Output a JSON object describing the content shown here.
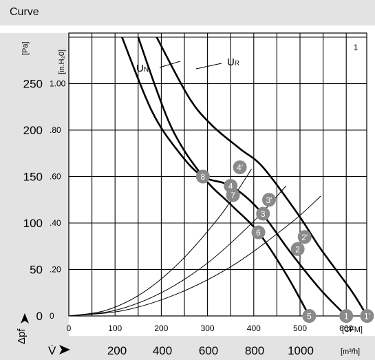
{
  "header": {
    "title": "Curve"
  },
  "chart_data": {
    "type": "line",
    "figure_number": "1",
    "axes": {
      "y_primary": {
        "unit": "[Pa]",
        "ticks": [
          0,
          50,
          100,
          150,
          200,
          250
        ],
        "range": [
          0,
          300
        ]
      },
      "y_secondary": {
        "unit": "[in.H₂0]",
        "ticks": [
          "0",
          ".20",
          ".40",
          ".60",
          ".80",
          "1.00"
        ]
      },
      "x_primary": {
        "unit": "[CFM]",
        "ticks": [
          0,
          100,
          200,
          300,
          400,
          500,
          600
        ],
        "range": [
          0,
          650
        ]
      },
      "x_secondary": {
        "unit": "[m³/h]",
        "ticks": [
          "200",
          "400",
          "600",
          "800",
          "1000"
        ]
      },
      "y_symbol": "Δpf",
      "x_symbol": "V̇"
    },
    "grid": true,
    "curve_labels": [
      "UN",
      "UR"
    ],
    "series": [
      {
        "name": "UN",
        "x": [
          115,
          180,
          240,
          290,
          350,
          410,
          480,
          545,
          600
        ],
        "y": [
          300,
          220,
          175,
          150,
          140,
          115,
          68,
          28,
          0
        ]
      },
      {
        "name": "UR",
        "x": [
          190,
          260,
          310,
          370,
          420,
          495,
          545,
          610,
          645
        ],
        "y": [
          300,
          235,
          205,
          180,
          160,
          110,
          72,
          28,
          0
        ]
      },
      {
        "name": "thick",
        "x": [
          150,
          220,
          290,
          350,
          410,
          470,
          520
        ],
        "y": [
          300,
          205,
          150,
          120,
          90,
          45,
          0
        ]
      }
    ],
    "resistance_curves": [
      {
        "x": [
          0,
          80,
          160,
          240,
          320,
          360,
          395
        ],
        "y": [
          0,
          6,
          25,
          58,
          103,
          131,
          158
        ]
      },
      {
        "x": [
          0,
          100,
          200,
          300,
          400,
          470
        ],
        "y": [
          0,
          6,
          25,
          57,
          102,
          140
        ]
      },
      {
        "x": [
          0,
          120,
          240,
          360,
          480,
          545
        ],
        "y": [
          0,
          6,
          25,
          56,
          100,
          129
        ]
      }
    ],
    "points": [
      {
        "label": "1",
        "x": 600,
        "y": 0
      },
      {
        "label": "1'",
        "x": 645,
        "y": 0
      },
      {
        "label": "2",
        "x": 495,
        "y": 72
      },
      {
        "label": "2'",
        "x": 510,
        "y": 85
      },
      {
        "label": "3",
        "x": 420,
        "y": 110
      },
      {
        "label": "3'",
        "x": 433,
        "y": 125
      },
      {
        "label": "4",
        "x": 350,
        "y": 140
      },
      {
        "label": "4'",
        "x": 370,
        "y": 160
      },
      {
        "label": "5",
        "x": 520,
        "y": 0
      },
      {
        "label": "6",
        "x": 410,
        "y": 90
      },
      {
        "label": "7",
        "x": 355,
        "y": 130
      },
      {
        "label": "8",
        "x": 290,
        "y": 150
      }
    ]
  }
}
